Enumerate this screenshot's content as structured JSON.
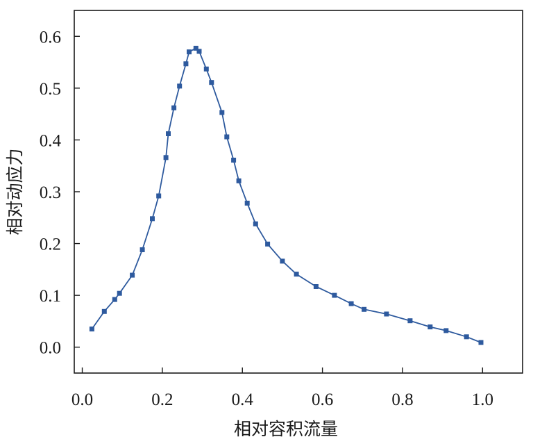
{
  "chart_data": {
    "type": "line",
    "title": "",
    "xlabel": "相对容积流量",
    "ylabel": "相对动应力",
    "xlim": [
      -0.02,
      1.1
    ],
    "ylim": [
      -0.05,
      0.65
    ],
    "xticks": [
      "0.0",
      "0.2",
      "0.4",
      "0.6",
      "0.8",
      "1.0"
    ],
    "yticks": [
      "0.0",
      "0.1",
      "0.2",
      "0.3",
      "0.4",
      "0.5",
      "0.6"
    ],
    "grid": false,
    "series": [
      {
        "color": "#2e5a9e",
        "marker": "square",
        "x": [
          0.024,
          0.055,
          0.081,
          0.093,
          0.125,
          0.15,
          0.175,
          0.191,
          0.209,
          0.215,
          0.229,
          0.243,
          0.259,
          0.267,
          0.284,
          0.292,
          0.31,
          0.323,
          0.349,
          0.361,
          0.378,
          0.391,
          0.412,
          0.433,
          0.463,
          0.5,
          0.535,
          0.584,
          0.63,
          0.672,
          0.704,
          0.76,
          0.819,
          0.869,
          0.909,
          0.96,
          0.996
        ],
        "y": [
          0.035,
          0.069,
          0.092,
          0.104,
          0.139,
          0.188,
          0.248,
          0.292,
          0.366,
          0.412,
          0.462,
          0.504,
          0.547,
          0.57,
          0.577,
          0.571,
          0.537,
          0.511,
          0.453,
          0.406,
          0.361,
          0.321,
          0.278,
          0.238,
          0.199,
          0.166,
          0.141,
          0.117,
          0.1,
          0.084,
          0.073,
          0.064,
          0.051,
          0.039,
          0.032,
          0.02,
          0.009
        ]
      }
    ]
  }
}
